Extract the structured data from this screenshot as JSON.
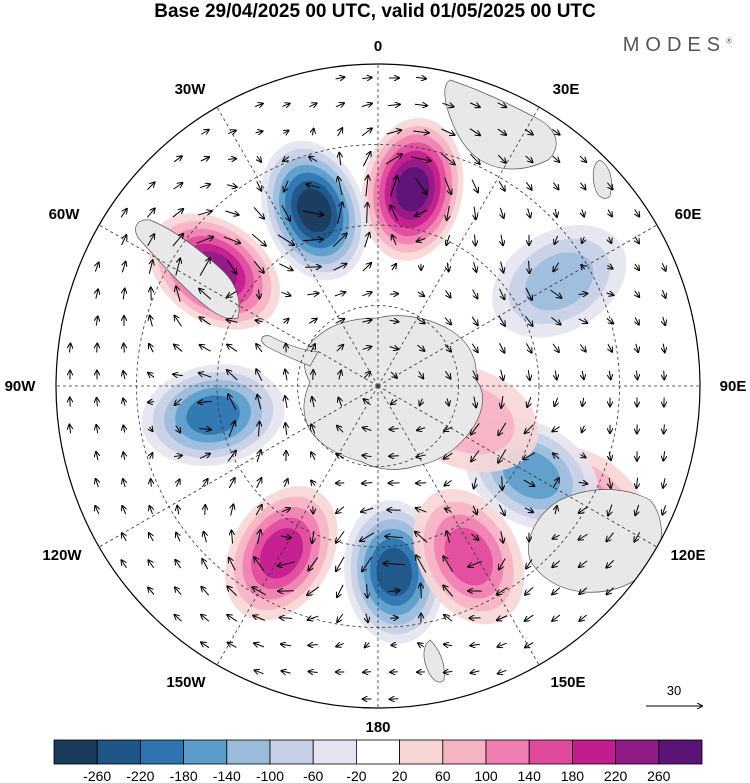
{
  "title": "Base 29/04/2025 00 UTC, valid 01/05/2025 00 UTC",
  "brand": "MODES",
  "brand_mark": "®",
  "longitude_labels": {
    "top": "0",
    "e30": "30E",
    "w30": "30W",
    "e60": "60E",
    "w60": "60W",
    "e90": "90E",
    "w90": "90W",
    "e120": "120E",
    "w120": "120W",
    "e150": "150E",
    "w150": "150W",
    "bottom": "180"
  },
  "reference_vector": {
    "label": "30"
  },
  "colorbar": {
    "labels": [
      "-260",
      "-220",
      "-180",
      "-140",
      "-100",
      "-60",
      "-20",
      "20",
      "60",
      "100",
      "140",
      "180",
      "220",
      "260"
    ],
    "colors": [
      "#1a3a5c",
      "#1f5587",
      "#2f74b0",
      "#5b9ccb",
      "#9bbbdd",
      "#c5cfe6",
      "#e4e4f0",
      "#ffffff",
      "#f8d6d6",
      "#f6b3c4",
      "#ef7fb0",
      "#e04a9c",
      "#c21c8e",
      "#901a86",
      "#5a1377"
    ]
  },
  "map": {
    "projection": "south-polar-stereographic",
    "continent_color": "#e6e6e6",
    "anomalies": [
      {
        "sign": "positive",
        "value": 260,
        "lon": 10,
        "colat": 0.62
      },
      {
        "sign": "negative",
        "value": -260,
        "lon": -20,
        "colat": 0.58
      },
      {
        "sign": "positive",
        "value": 220,
        "lon": -55,
        "colat": 0.62
      },
      {
        "sign": "negative",
        "value": -180,
        "lon": -100,
        "colat": 0.52
      },
      {
        "sign": "positive",
        "value": 180,
        "lon": -150,
        "colat": 0.6
      },
      {
        "sign": "negative",
        "value": -220,
        "lon": 175,
        "colat": 0.58
      },
      {
        "sign": "positive",
        "value": 140,
        "lon": 152,
        "colat": 0.6
      },
      {
        "sign": "positive",
        "value": 100,
        "lon": 120,
        "colat": 0.72
      },
      {
        "sign": "negative",
        "value": -100,
        "lon": 60,
        "colat": 0.65
      },
      {
        "sign": "negative",
        "value": -140,
        "lon": 120,
        "colat": 0.55
      },
      {
        "sign": "positive",
        "value": 60,
        "lon": 110,
        "colat": 0.3
      }
    ]
  }
}
